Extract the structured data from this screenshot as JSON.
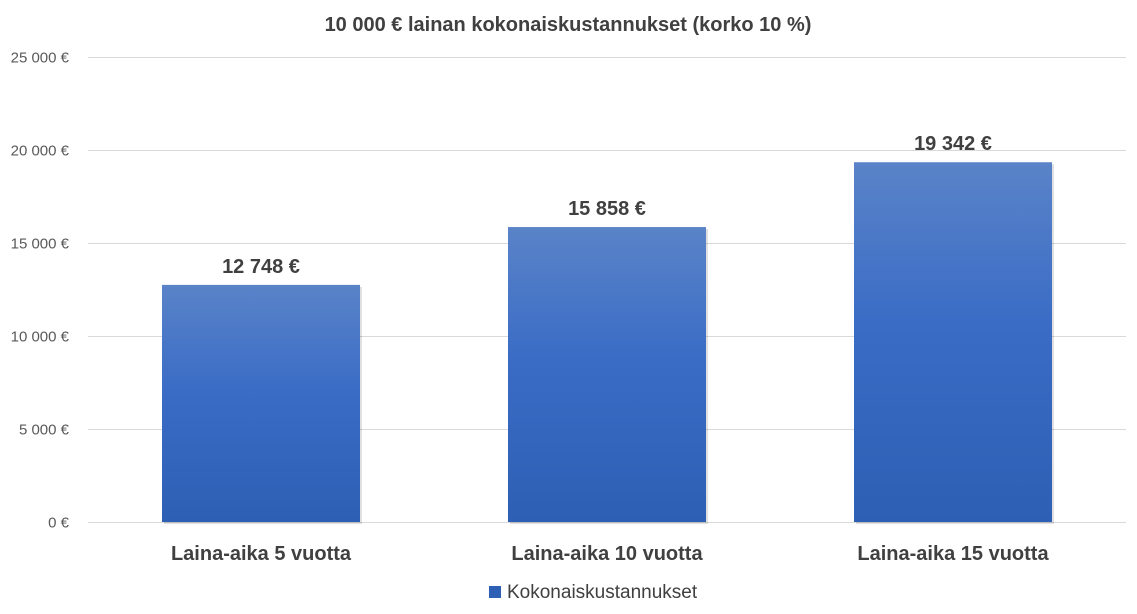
{
  "chart_data": {
    "type": "bar",
    "title": "10 000 € lainan kokonaiskustannukset (korko 10 %)",
    "xlabel": "",
    "ylabel": "",
    "categories": [
      "Laina-aika 5 vuotta",
      "Laina-aika 10 vuotta",
      "Laina-aika 15 vuotta"
    ],
    "series": [
      {
        "name": "Kokonaiskustannukset",
        "values": [
          12748,
          15858,
          19342
        ],
        "data_labels": [
          "12 748 €",
          "15 858 €",
          "19 342 €"
        ],
        "color_top": "#5a83c8",
        "color_bottom": "#2d5fb4"
      }
    ],
    "ylim": [
      0,
      25000
    ],
    "yticks": [
      0,
      5000,
      10000,
      15000,
      20000,
      25000
    ],
    "ytick_labels": [
      "0 €",
      "5 000 €",
      "10 000 €",
      "15 000 €",
      "20 000 €",
      "25 000 €"
    ],
    "grid": true,
    "legend_position": "bottom"
  }
}
